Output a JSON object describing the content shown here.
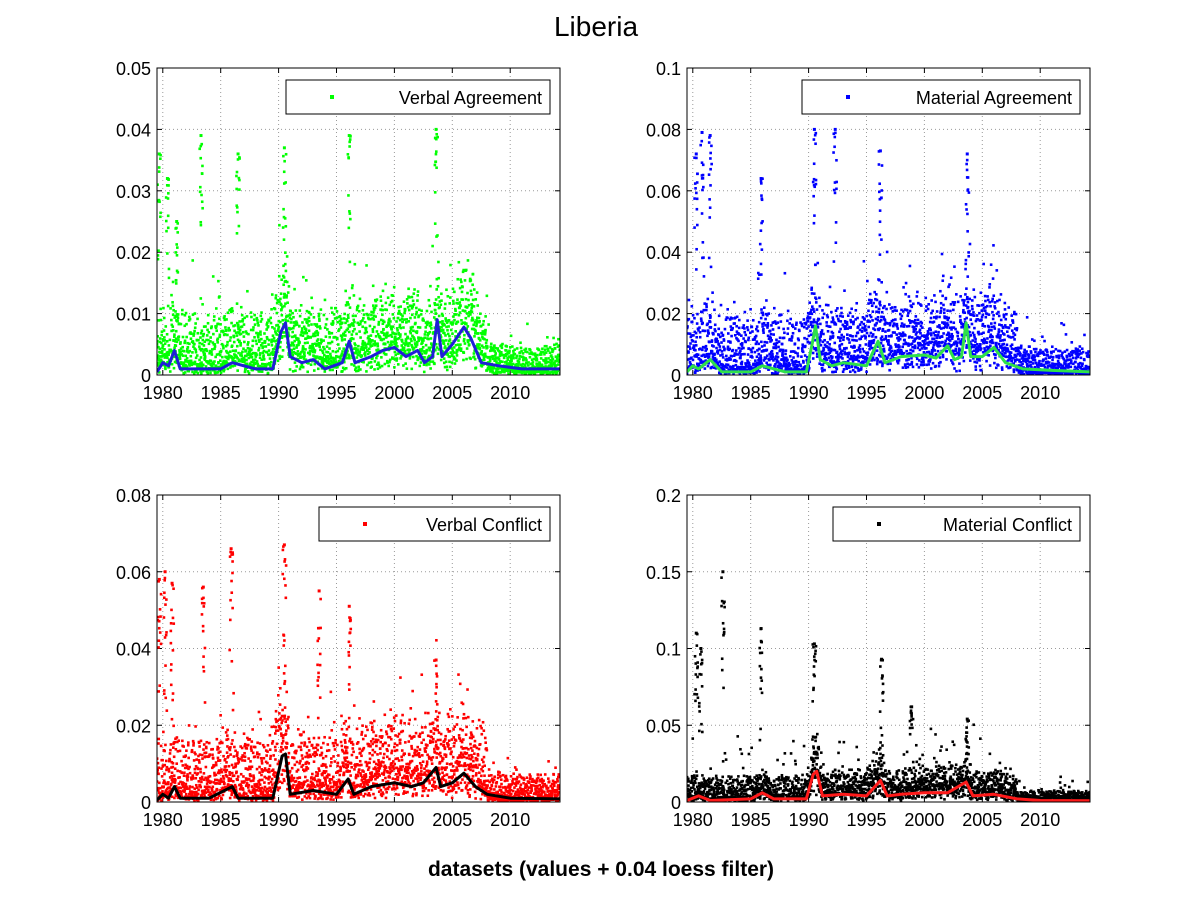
{
  "figure": {
    "title": "Liberia",
    "xlabel": "datasets (values + 0.04 loess filter)",
    "background": "#ffffff"
  },
  "chart_data": [
    {
      "type": "scatter",
      "legend": "Verbal Agreement",
      "legend_placement": "top-right",
      "grid": true,
      "xlim": [
        1979.5,
        2014.3
      ],
      "ylim": [
        0,
        0.05
      ],
      "xticks": [
        "1980",
        "1985",
        "1990",
        "1995",
        "2000",
        "2005",
        "2010"
      ],
      "yticks": [
        "0",
        "0.01",
        "0.02",
        "0.03",
        "0.04",
        "0.05"
      ],
      "point_color": "#00ff00",
      "line_color": "#1f1fd6",
      "base": 0.003,
      "noise": 0.004,
      "spikes": [
        [
          1979.7,
          0.036
        ],
        [
          1980.4,
          0.032
        ],
        [
          1981.2,
          0.025
        ],
        [
          1983.3,
          0.039
        ],
        [
          1986.5,
          0.036
        ],
        [
          1990.5,
          0.037
        ],
        [
          1996.1,
          0.039
        ],
        [
          2003.6,
          0.04
        ]
      ],
      "loess": [
        [
          1979.5,
          0.0005
        ],
        [
          1980,
          0.002
        ],
        [
          1980.5,
          0.0015
        ],
        [
          1981,
          0.004
        ],
        [
          1981.5,
          0.001
        ],
        [
          1983,
          0.001
        ],
        [
          1985,
          0.001
        ],
        [
          1986,
          0.002
        ],
        [
          1988,
          0.001
        ],
        [
          1989.5,
          0.001
        ],
        [
          1990.2,
          0.007
        ],
        [
          1990.6,
          0.0085
        ],
        [
          1991,
          0.003
        ],
        [
          1992,
          0.002
        ],
        [
          1993,
          0.0025
        ],
        [
          1994,
          0.001
        ],
        [
          1995.5,
          0.002
        ],
        [
          1996.1,
          0.0055
        ],
        [
          1996.6,
          0.002
        ],
        [
          1998,
          0.003
        ],
        [
          1999,
          0.004
        ],
        [
          2000,
          0.0045
        ],
        [
          2001,
          0.003
        ],
        [
          2002,
          0.004
        ],
        [
          2002.6,
          0.002
        ],
        [
          2003.3,
          0.003
        ],
        [
          2003.7,
          0.009
        ],
        [
          2004.1,
          0.003
        ],
        [
          2005,
          0.005
        ],
        [
          2006,
          0.0078
        ],
        [
          2006.6,
          0.006
        ],
        [
          2007.5,
          0.002
        ],
        [
          2009,
          0.0015
        ],
        [
          2011,
          0.001
        ],
        [
          2014.3,
          0.001
        ]
      ]
    },
    {
      "type": "scatter",
      "legend": "Material Agreement",
      "legend_placement": "top-right",
      "grid": true,
      "xlim": [
        1979.5,
        2014.3
      ],
      "ylim": [
        0,
        0.1
      ],
      "xticks": [
        "1980",
        "1985",
        "1990",
        "1995",
        "2000",
        "2005",
        "2010"
      ],
      "yticks": [
        "0",
        "0.02",
        "0.04",
        "0.06",
        "0.08",
        "0.1"
      ],
      "point_color": "#0000ff",
      "line_color": "#2ee04a",
      "base": 0.006,
      "noise": 0.009,
      "spikes": [
        [
          1980.3,
          0.072
        ],
        [
          1980.8,
          0.079
        ],
        [
          1981.5,
          0.078
        ],
        [
          1985.9,
          0.064
        ],
        [
          1990.5,
          0.08
        ],
        [
          1992.3,
          0.08
        ],
        [
          1996.2,
          0.073
        ],
        [
          2003.7,
          0.072
        ]
      ],
      "loess": [
        [
          1979.5,
          0.001
        ],
        [
          1980,
          0.003
        ],
        [
          1980.5,
          0.002
        ],
        [
          1981.5,
          0.005
        ],
        [
          1982.5,
          0.001
        ],
        [
          1985,
          0.001
        ],
        [
          1986,
          0.003
        ],
        [
          1988,
          0.001
        ],
        [
          1989.8,
          0.001
        ],
        [
          1990.3,
          0.01
        ],
        [
          1990.6,
          0.016
        ],
        [
          1991,
          0.005
        ],
        [
          1992,
          0.003
        ],
        [
          1993,
          0.004
        ],
        [
          1995,
          0.003
        ],
        [
          1996,
          0.011
        ],
        [
          1996.6,
          0.004
        ],
        [
          1998,
          0.006
        ],
        [
          2000,
          0.0065
        ],
        [
          2001,
          0.0055
        ],
        [
          2002,
          0.0095
        ],
        [
          2002.6,
          0.005
        ],
        [
          2003.2,
          0.006
        ],
        [
          2003.6,
          0.017
        ],
        [
          2004,
          0.006
        ],
        [
          2005,
          0.006
        ],
        [
          2006,
          0.009
        ],
        [
          2007,
          0.004
        ],
        [
          2008.5,
          0.002
        ],
        [
          2011,
          0.0015
        ],
        [
          2014.3,
          0.001
        ]
      ]
    },
    {
      "type": "scatter",
      "legend": "Verbal Conflict",
      "legend_placement": "top-right",
      "grid": true,
      "xlim": [
        1979.5,
        2014.3
      ],
      "ylim": [
        0,
        0.08
      ],
      "xticks": [
        "1980",
        "1985",
        "1990",
        "1995",
        "2000",
        "2005",
        "2010"
      ],
      "yticks": [
        "0",
        "0.02",
        "0.04",
        "0.06",
        "0.08"
      ],
      "point_color": "#ff0000",
      "line_color": "#000000",
      "base": 0.005,
      "noise": 0.007,
      "spikes": [
        [
          1979.7,
          0.058
        ],
        [
          1980.2,
          0.06
        ],
        [
          1980.8,
          0.057
        ],
        [
          1983.5,
          0.056
        ],
        [
          1985.9,
          0.066
        ],
        [
          1990.5,
          0.067
        ],
        [
          1993.5,
          0.055
        ],
        [
          1996.1,
          0.051
        ],
        [
          2003.6,
          0.037
        ]
      ],
      "loess": [
        [
          1979.5,
          0.0005
        ],
        [
          1980,
          0.002
        ],
        [
          1980.5,
          0.001
        ],
        [
          1981,
          0.004
        ],
        [
          1981.5,
          0.001
        ],
        [
          1984,
          0.001
        ],
        [
          1986,
          0.004
        ],
        [
          1986.5,
          0.001
        ],
        [
          1989.5,
          0.001
        ],
        [
          1990.3,
          0.012
        ],
        [
          1990.6,
          0.0125
        ],
        [
          1991,
          0.002
        ],
        [
          1993,
          0.003
        ],
        [
          1995,
          0.002
        ],
        [
          1996,
          0.006
        ],
        [
          1996.5,
          0.002
        ],
        [
          1998,
          0.004
        ],
        [
          2000,
          0.005
        ],
        [
          2001.5,
          0.004
        ],
        [
          2002.5,
          0.005
        ],
        [
          2003.6,
          0.009
        ],
        [
          2004,
          0.004
        ],
        [
          2005,
          0.005
        ],
        [
          2006,
          0.0075
        ],
        [
          2007,
          0.004
        ],
        [
          2008,
          0.002
        ],
        [
          2010,
          0.001
        ],
        [
          2014.3,
          0.0008
        ]
      ]
    },
    {
      "type": "scatter",
      "legend": "Material Conflict",
      "legend_placement": "top-right",
      "grid": true,
      "xlim": [
        1979.5,
        2014.3
      ],
      "ylim": [
        0,
        0.2
      ],
      "xticks": [
        "1980",
        "1985",
        "1990",
        "1995",
        "2000",
        "2005",
        "2010"
      ],
      "yticks": [
        "0",
        "0.05",
        "0.1",
        "0.15",
        "0.2"
      ],
      "point_color": "#000000",
      "line_color": "#ff1a1a",
      "base": 0.005,
      "noise": 0.012,
      "spikes": [
        [
          1980.3,
          0.11
        ],
        [
          1980.7,
          0.1
        ],
        [
          1982.6,
          0.15
        ],
        [
          1985.9,
          0.113
        ],
        [
          1990.5,
          0.103
        ],
        [
          1996.3,
          0.093
        ],
        [
          1998.9,
          0.062
        ],
        [
          2003.7,
          0.054
        ]
      ],
      "loess": [
        [
          1979.5,
          0.001
        ],
        [
          1980.5,
          0.004
        ],
        [
          1981.5,
          0.001
        ],
        [
          1985,
          0.002
        ],
        [
          1986,
          0.006
        ],
        [
          1987,
          0.002
        ],
        [
          1989.8,
          0.002
        ],
        [
          1990.4,
          0.018
        ],
        [
          1990.7,
          0.02
        ],
        [
          1991.2,
          0.004
        ],
        [
          1993,
          0.005
        ],
        [
          1995,
          0.004
        ],
        [
          1996.2,
          0.014
        ],
        [
          1996.8,
          0.004
        ],
        [
          1998,
          0.005
        ],
        [
          2000,
          0.006
        ],
        [
          2002,
          0.006
        ],
        [
          2003.6,
          0.013
        ],
        [
          2004.2,
          0.004
        ],
        [
          2006,
          0.005
        ],
        [
          2008,
          0.002
        ],
        [
          2010,
          0.001
        ],
        [
          2014.3,
          0.0008
        ]
      ]
    }
  ]
}
